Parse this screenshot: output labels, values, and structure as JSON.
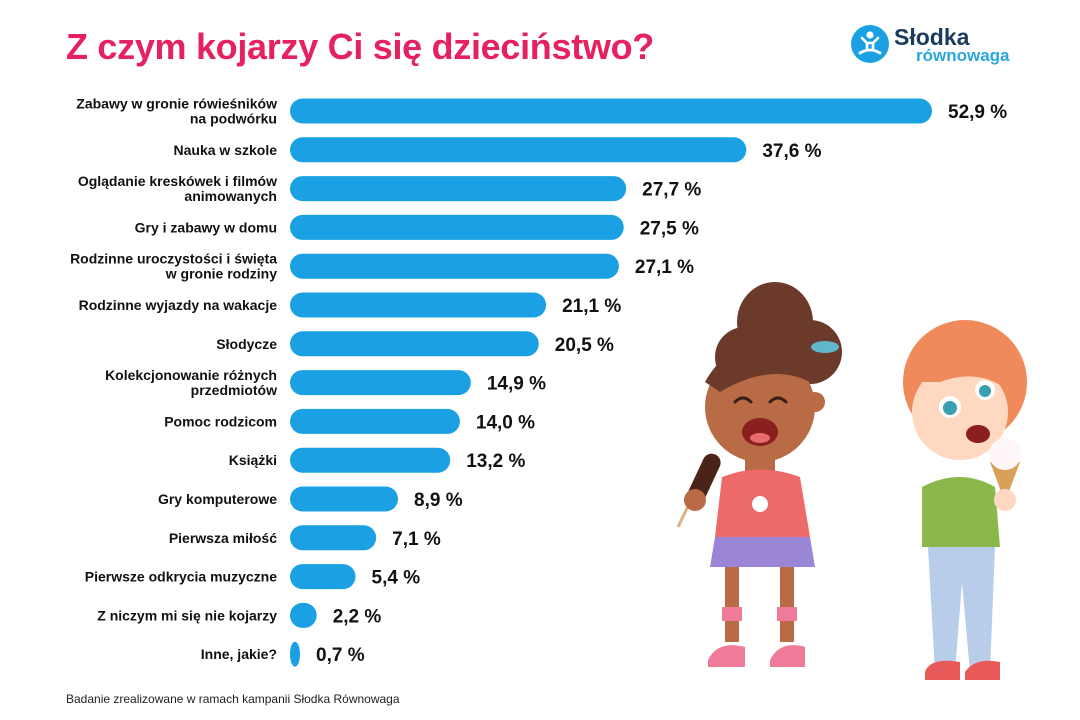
{
  "title": "Z czym kojarzy Ci się dzieciństwo?",
  "logo": {
    "line1": "Słodka",
    "line2": "równowaga",
    "icon": "meditating-person-icon"
  },
  "footnote": "Badanie zrealizowane w ramach kampanii Słodka Równowaga",
  "colors": {
    "bar": "#1aa0e3",
    "title": "#e5215f",
    "text": "#111111"
  },
  "chart_data": {
    "type": "bar",
    "orientation": "horizontal",
    "title": "Z czym kojarzy Ci się dzieciństwo?",
    "unit": "%",
    "categories": [
      [
        "Zabawy w gronie rówieśników",
        "na podwórku"
      ],
      [
        "Nauka w szkole"
      ],
      [
        "Oglądanie kreskówek i filmów",
        "animowanych"
      ],
      [
        "Gry i zabawy w domu"
      ],
      [
        "Rodzinne uroczystości i święta",
        "w gronie rodziny"
      ],
      [
        "Rodzinne wyjazdy na wakacje"
      ],
      [
        "Słodycze"
      ],
      [
        "Kolekcjonowanie różnych",
        "przedmiotów"
      ],
      [
        "Pomoc rodzicom"
      ],
      [
        "Książki"
      ],
      [
        "Gry komputerowe"
      ],
      [
        "Pierwsza miłość"
      ],
      [
        "Pierwsze odkrycia muzyczne"
      ],
      [
        "Z niczym mi się nie kojarzy"
      ],
      [
        "Inne, jakie?"
      ]
    ],
    "values": [
      52.9,
      37.6,
      27.7,
      27.5,
      27.1,
      21.1,
      20.5,
      14.9,
      14.0,
      13.2,
      8.9,
      7.1,
      5.4,
      2.2,
      0.7
    ],
    "value_labels": [
      "52,9 %",
      "37,6 %",
      "27,7 %",
      "27,5 %",
      "27,1 %",
      "21,1 %",
      "20,5 %",
      "14,9 %",
      "14,0 %",
      "13,2 %",
      "8,9 %",
      "7,1 %",
      "5,4 %",
      "2,2 %",
      "0,7 %"
    ],
    "xlim": [
      0,
      52.9
    ],
    "grid": false,
    "legend": "none"
  }
}
